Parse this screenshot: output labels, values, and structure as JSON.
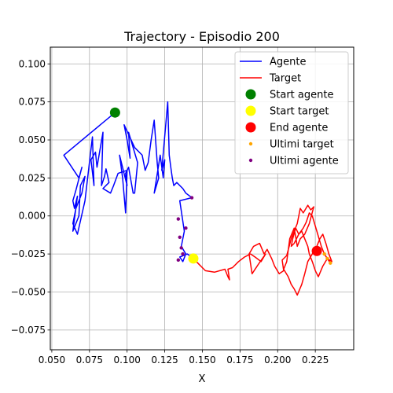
{
  "chart_data": {
    "type": "line",
    "title": "Trajectory - Episodio 200",
    "xlabel": "X",
    "ylabel": "",
    "xlim": [
      0.049,
      0.2505
    ],
    "ylim": [
      -0.088,
      0.111
    ],
    "xticks": [
      0.05,
      0.075,
      0.1,
      0.125,
      0.15,
      0.175,
      0.2,
      0.225
    ],
    "xtick_labels": [
      "0.050",
      "0.075",
      "0.100",
      "0.125",
      "0.150",
      "0.175",
      "0.200",
      "0.225"
    ],
    "yticks": [
      0.1,
      0.075,
      0.05,
      0.025,
      0.0,
      -0.025,
      -0.05,
      -0.075
    ],
    "ytick_labels": [
      "0.100",
      "0.075",
      "0.050",
      "0.025",
      "0.000",
      "−0.025",
      "−0.050",
      "−0.075"
    ],
    "grid": true,
    "legend_position": "top-right",
    "series": [
      {
        "name": "Agente",
        "kind": "line",
        "color": "#0000ff",
        "x": [
          0.092,
          0.058,
          0.068,
          0.07,
          0.066,
          0.064,
          0.065,
          0.067,
          0.064,
          0.068,
          0.069,
          0.072,
          0.07,
          0.066,
          0.064,
          0.067,
          0.072,
          0.077,
          0.078,
          0.076,
          0.079,
          0.08,
          0.084,
          0.083,
          0.085,
          0.086,
          0.088,
          0.084,
          0.089,
          0.091,
          0.094,
          0.1,
          0.099,
          0.097,
          0.095,
          0.1,
          0.099,
          0.101,
          0.104,
          0.105,
          0.107,
          0.101,
          0.102,
          0.1,
          0.098,
          0.105,
          0.11,
          0.112,
          0.114,
          0.116,
          0.118,
          0.12,
          0.121,
          0.118,
          0.122,
          0.124,
          0.125,
          0.123,
          0.127,
          0.128,
          0.129,
          0.13,
          0.131,
          0.133,
          0.137,
          0.139,
          0.143,
          0.135,
          0.138,
          0.136,
          0.139,
          0.137,
          0.135,
          0.14,
          0.144
        ],
        "y": [
          0.068,
          0.04,
          0.025,
          0.032,
          0.017,
          0.01,
          0.005,
          0.013,
          -0.01,
          0.0,
          0.02,
          0.026,
          0.015,
          0.005,
          -0.005,
          -0.012,
          0.01,
          0.052,
          0.02,
          0.037,
          0.042,
          0.032,
          0.055,
          0.02,
          0.026,
          0.031,
          0.022,
          0.018,
          0.015,
          0.02,
          0.028,
          0.03,
          0.002,
          0.025,
          0.04,
          0.02,
          0.028,
          0.032,
          0.015,
          0.015,
          0.035,
          0.055,
          0.038,
          0.05,
          0.06,
          0.045,
          0.04,
          0.03,
          0.035,
          0.05,
          0.063,
          0.035,
          0.025,
          0.015,
          0.04,
          0.025,
          0.037,
          0.03,
          0.075,
          0.04,
          0.032,
          0.025,
          0.02,
          0.022,
          0.018,
          0.015,
          0.012,
          0.01,
          -0.01,
          -0.02,
          -0.025,
          -0.03,
          -0.027,
          -0.025,
          -0.028
        ]
      },
      {
        "name": "Target",
        "kind": "line",
        "color": "#ff0000",
        "x": [
          0.144,
          0.148,
          0.152,
          0.158,
          0.165,
          0.167,
          0.168,
          0.167,
          0.17,
          0.174,
          0.178,
          0.182,
          0.185,
          0.189,
          0.192,
          0.187,
          0.183,
          0.181,
          0.184,
          0.188,
          0.191,
          0.193,
          0.196,
          0.198,
          0.201,
          0.204,
          0.203,
          0.206,
          0.209,
          0.211,
          0.213,
          0.215,
          0.217,
          0.22,
          0.222,
          0.224,
          0.221,
          0.218,
          0.215,
          0.213,
          0.211,
          0.208,
          0.206,
          0.204,
          0.207,
          0.209,
          0.211,
          0.213,
          0.216,
          0.218,
          0.22,
          0.223,
          0.226,
          0.228,
          0.23,
          0.232,
          0.234,
          0.236,
          0.233,
          0.23,
          0.227,
          0.225,
          0.223,
          0.221,
          0.22,
          0.218,
          0.216,
          0.214,
          0.212,
          0.21,
          0.209,
          0.211,
          0.214,
          0.217,
          0.219,
          0.221,
          0.223,
          0.226,
          0.229,
          0.231,
          0.233,
          0.235
        ],
        "y": [
          -0.028,
          -0.032,
          -0.036,
          -0.037,
          -0.035,
          -0.04,
          -0.042,
          -0.035,
          -0.034,
          -0.03,
          -0.027,
          -0.025,
          -0.027,
          -0.03,
          -0.025,
          -0.032,
          -0.038,
          -0.025,
          -0.02,
          -0.018,
          -0.025,
          -0.022,
          -0.028,
          -0.033,
          -0.038,
          -0.036,
          -0.029,
          -0.026,
          -0.015,
          -0.01,
          -0.005,
          0.005,
          0.002,
          0.007,
          0.004,
          0.006,
          -0.005,
          -0.012,
          -0.015,
          -0.02,
          -0.008,
          -0.015,
          -0.03,
          -0.035,
          -0.04,
          -0.045,
          -0.048,
          -0.052,
          -0.045,
          -0.038,
          -0.03,
          -0.025,
          -0.02,
          -0.015,
          -0.012,
          -0.018,
          -0.025,
          -0.03,
          -0.028,
          -0.033,
          -0.04,
          -0.036,
          -0.03,
          -0.025,
          -0.02,
          -0.015,
          -0.01,
          -0.012,
          -0.008,
          -0.015,
          -0.02,
          -0.018,
          -0.012,
          -0.008,
          -0.004,
          0.002,
          0.0,
          -0.01,
          -0.02,
          -0.025,
          -0.028,
          -0.031
        ]
      },
      {
        "name": "Start agente",
        "kind": "marker",
        "color": "#008000",
        "x": [
          0.092
        ],
        "y": [
          0.068
        ]
      },
      {
        "name": "Start target",
        "kind": "marker",
        "color": "#ffff00",
        "x": [
          0.144
        ],
        "y": [
          -0.028
        ]
      },
      {
        "name": "End agente",
        "kind": "marker",
        "color": "#ff0000",
        "x": [
          0.226
        ],
        "y": [
          -0.023
        ]
      },
      {
        "name": "Ultimi target",
        "kind": "scatter",
        "color": "#ffa500",
        "x": [
          0.231,
          0.233,
          0.235
        ],
        "y": [
          -0.025,
          -0.028,
          -0.031
        ]
      },
      {
        "name": "Ultimi agente",
        "kind": "scatter",
        "color": "#800080",
        "x": [
          0.143,
          0.134,
          0.136,
          0.139,
          0.135,
          0.137,
          0.134
        ],
        "y": [
          0.012,
          -0.002,
          -0.021,
          -0.008,
          -0.014,
          -0.025,
          -0.029
        ]
      }
    ]
  }
}
